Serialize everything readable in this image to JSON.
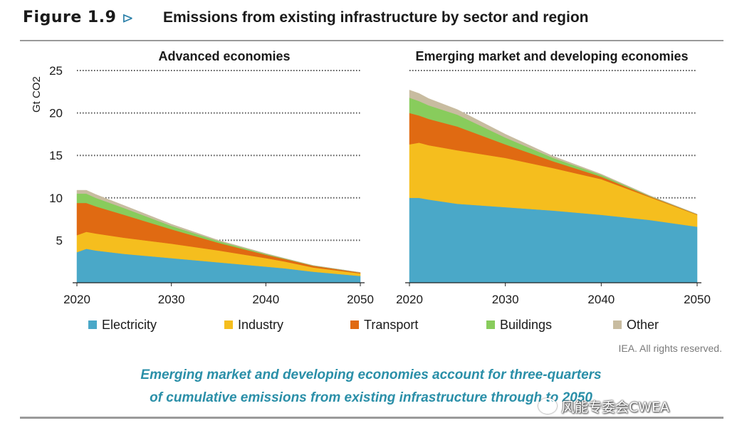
{
  "header": {
    "figure_label": "Figure 1.9",
    "arrow": "⊳",
    "title": "Emissions from existing infrastructure by sector and region"
  },
  "chart_data": [
    {
      "type": "area",
      "stacked": true,
      "title": "Advanced economies",
      "ylabel": "Gt CO2",
      "ylim": [
        0,
        25
      ],
      "yticks": [
        5,
        10,
        15,
        20,
        25
      ],
      "xlim": [
        2020,
        2050
      ],
      "xticks": [
        2020,
        2030,
        2040,
        2050
      ],
      "grid": "dotted",
      "x": [
        2020,
        2021,
        2022,
        2025,
        2030,
        2035,
        2040,
        2042,
        2045,
        2050
      ],
      "series": [
        {
          "name": "Electricity",
          "values": [
            3.6,
            4.0,
            3.8,
            3.4,
            2.9,
            2.4,
            1.9,
            1.7,
            1.3,
            0.8
          ]
        },
        {
          "name": "Industry",
          "values": [
            2.0,
            2.0,
            2.0,
            1.9,
            1.7,
            1.4,
            1.0,
            0.8,
            0.5,
            0.3
          ]
        },
        {
          "name": "Transport",
          "values": [
            3.8,
            3.4,
            3.2,
            2.7,
            1.7,
            0.9,
            0.4,
            0.3,
            0.2,
            0.1
          ]
        },
        {
          "name": "Buildings",
          "values": [
            1.1,
            1.1,
            1.0,
            0.8,
            0.4,
            0.2,
            0.1,
            0.05,
            0.03,
            0.01
          ]
        },
        {
          "name": "Other",
          "values": [
            0.4,
            0.4,
            0.4,
            0.3,
            0.2,
            0.1,
            0.05,
            0.03,
            0.02,
            0.01
          ]
        }
      ]
    },
    {
      "type": "area",
      "stacked": true,
      "title": "Emerging market and developing economies",
      "ylim": [
        0,
        25
      ],
      "yticks": [
        5,
        10,
        15,
        20,
        25
      ],
      "xlim": [
        2020,
        2050
      ],
      "xticks": [
        2020,
        2030,
        2040,
        2050
      ],
      "grid": "dotted",
      "x": [
        2020,
        2021,
        2022,
        2025,
        2030,
        2035,
        2040,
        2045,
        2050
      ],
      "series": [
        {
          "name": "Electricity",
          "values": [
            10.0,
            10.0,
            9.8,
            9.3,
            8.9,
            8.5,
            8.0,
            7.4,
            6.6
          ]
        },
        {
          "name": "Industry",
          "values": [
            6.3,
            6.5,
            6.4,
            6.3,
            5.8,
            5.0,
            4.2,
            2.7,
            1.4
          ]
        },
        {
          "name": "Transport",
          "values": [
            3.7,
            3.2,
            3.1,
            2.8,
            1.6,
            0.8,
            0.3,
            0.1,
            0.05
          ]
        },
        {
          "name": "Buildings",
          "values": [
            1.8,
            1.7,
            1.6,
            1.4,
            0.8,
            0.4,
            0.2,
            0.05,
            0.02
          ]
        },
        {
          "name": "Other",
          "values": [
            0.9,
            0.9,
            0.8,
            0.6,
            0.4,
            0.2,
            0.1,
            0.05,
            0.02
          ]
        }
      ]
    }
  ],
  "legend": [
    {
      "name": "Electricity",
      "color": "#4aa8c8"
    },
    {
      "name": "Industry",
      "color": "#f5be1e"
    },
    {
      "name": "Transport",
      "color": "#e06a12"
    },
    {
      "name": "Buildings",
      "color": "#88cc5c"
    },
    {
      "name": "Other",
      "color": "#c8bca0"
    }
  ],
  "credit": "IEA. All rights reserved.",
  "caption": {
    "line1": "Emerging market and developing economies account for three-quarters",
    "line2": "of cumulative emissions from existing infrastructure through to 2050"
  },
  "watermark": "风能专委会CWEA"
}
